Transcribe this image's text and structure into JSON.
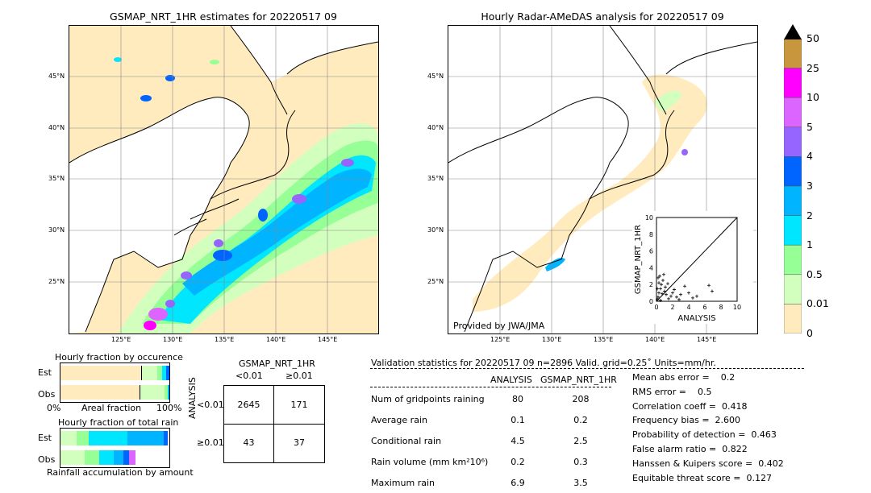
{
  "left_map": {
    "title": "GSMAP_NRT_1HR estimates for 20220517 09"
  },
  "right_map": {
    "title": "Hourly Radar-AMeDAS analysis for 20220517 09",
    "credit": "Provided by JWA/JMA"
  },
  "lat_labels": [
    "45°N",
    "40°N",
    "35°N",
    "30°N",
    "25°N"
  ],
  "lon_labels": [
    "125°E",
    "130°E",
    "135°E",
    "140°E",
    "145°E"
  ],
  "colorbar": {
    "labels": [
      "50",
      "25",
      "10",
      "5",
      "4",
      "3",
      "2",
      "1",
      "0.5",
      "0.01",
      "0"
    ],
    "colors": [
      "#c8963c",
      "#ff00ff",
      "#dc64ff",
      "#9664ff",
      "#0064ff",
      "#00b4ff",
      "#00e6ff",
      "#96ff96",
      "#d2ffbe",
      "#ffebbe"
    ]
  },
  "occurrence": {
    "title": "Hourly fraction by occurence",
    "rows": [
      "Est",
      "Obs"
    ],
    "xlabel_left": "0%",
    "xlabel_mid": "Areal fraction",
    "xlabel_right": "100%"
  },
  "total_rain": {
    "title": "Hourly fraction of total rain",
    "rows": [
      "Est",
      "Obs"
    ],
    "xlabel": "Rainfall accumulation by amount"
  },
  "contingency": {
    "title": "GSMAP_NRT_1HR",
    "col_headers": [
      "<0.01",
      "≥0.01"
    ],
    "row_axis": "ANALYSIS",
    "row_headers": [
      "<0.01",
      "≥0.01"
    ],
    "cells": [
      [
        "2645",
        "171"
      ],
      [
        "43",
        "37"
      ]
    ]
  },
  "validation": {
    "header": "Validation statistics for 20220517 09  n=2896 Valid. grid=0.25˚ Units=mm/hr.",
    "col_analysis": "ANALYSIS",
    "col_gsmap": "GSMAP_NRT_1HR",
    "rows": [
      {
        "label": "Num of gridpoints raining",
        "a": "80",
        "g": "208"
      },
      {
        "label": "Average rain",
        "a": "0.1",
        "g": "0.2"
      },
      {
        "label": "Conditional rain",
        "a": "4.5",
        "g": "2.5"
      },
      {
        "label": "Rain volume (mm km²10⁶)",
        "a": "0.2",
        "g": "0.3"
      },
      {
        "label": "Maximum rain",
        "a": "6.9",
        "g": "3.5"
      }
    ],
    "scores": [
      "Mean abs error =    0.2",
      "RMS error =    0.5",
      "Correlation coeff =  0.418",
      "Frequency bias =  2.600",
      "Probability of detection =  0.463",
      "False alarm ratio =  0.822",
      "Hanssen & Kuipers score =  0.402",
      "Equitable threat score =  0.127"
    ]
  },
  "scatter": {
    "xlabel": "ANALYSIS",
    "ylabel": "GSMAP_NRT_1HR",
    "ticks": [
      "0",
      "2",
      "4",
      "6",
      "8",
      "10"
    ]
  },
  "chart_data": {
    "type": "scatter",
    "xlabel": "ANALYSIS",
    "ylabel": "GSMAP_NRT_1HR",
    "xlim": [
      0,
      10
    ],
    "ylim": [
      0,
      10
    ],
    "points": [
      [
        0.1,
        0.2
      ],
      [
        0.2,
        0.5
      ],
      [
        0.3,
        1.0
      ],
      [
        0.5,
        1.5
      ],
      [
        0.6,
        2.0
      ],
      [
        0.8,
        2.5
      ],
      [
        1.0,
        1.2
      ],
      [
        1.2,
        0.8
      ],
      [
        1.5,
        0.3
      ],
      [
        0.2,
        2.8
      ],
      [
        0.4,
        3.0
      ],
      [
        1.8,
        0.6
      ],
      [
        2.0,
        1.0
      ],
      [
        2.5,
        0.5
      ],
      [
        3.0,
        0.8
      ],
      [
        3.5,
        1.8
      ],
      [
        4.0,
        1.0
      ],
      [
        4.5,
        0.4
      ],
      [
        6.5,
        1.9
      ],
      [
        6.9,
        1.2
      ],
      [
        0.1,
        1.5
      ],
      [
        0.3,
        2.2
      ],
      [
        0.7,
        0.9
      ],
      [
        1.1,
        1.7
      ],
      [
        0.9,
        3.2
      ],
      [
        1.4,
        2.1
      ],
      [
        2.2,
        1.4
      ],
      [
        2.8,
        0.2
      ],
      [
        5.0,
        0.6
      ],
      [
        0.5,
        0.1
      ]
    ],
    "contingency": {
      "rows": [
        "<0.01",
        "≥0.01"
      ],
      "cols": [
        "<0.01",
        "≥0.01"
      ],
      "values": [
        [
          2645,
          171
        ],
        [
          43,
          37
        ]
      ]
    }
  }
}
